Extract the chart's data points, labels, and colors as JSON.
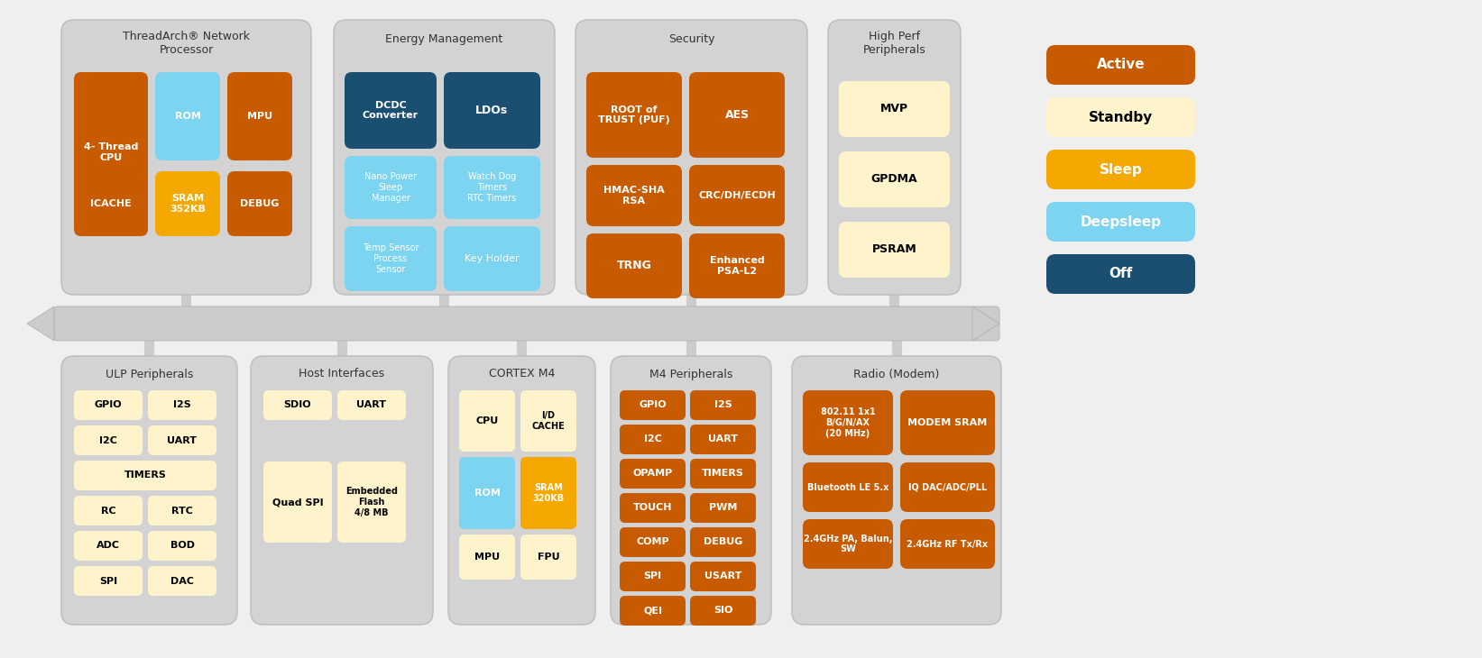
{
  "colors": {
    "active": "#C85A00",
    "standby": "#FFF3CC",
    "sleep": "#F5A800",
    "deepsleep": "#7DD4F0",
    "off": "#1B4F72",
    "panel_bg": "#D3D3D3",
    "fig_bg": "#EFEFEF",
    "text_dark": "#333333",
    "white": "#FFFFFF",
    "black": "#000000"
  },
  "legend": [
    {
      "label": "Active",
      "color": "#C85A00",
      "text_color": "#FFFFFF",
      "bold": true
    },
    {
      "label": "Standby",
      "color": "#FFF3CC",
      "text_color": "#000000",
      "bold": true
    },
    {
      "label": "Sleep",
      "color": "#F5A800",
      "text_color": "#FFFFFF",
      "bold": true
    },
    {
      "label": "Deepsleep",
      "color": "#7DD4F0",
      "text_color": "#FFFFFF",
      "bold": true
    },
    {
      "label": "Off",
      "color": "#1B4F72",
      "text_color": "#FFFFFF",
      "bold": true
    }
  ]
}
